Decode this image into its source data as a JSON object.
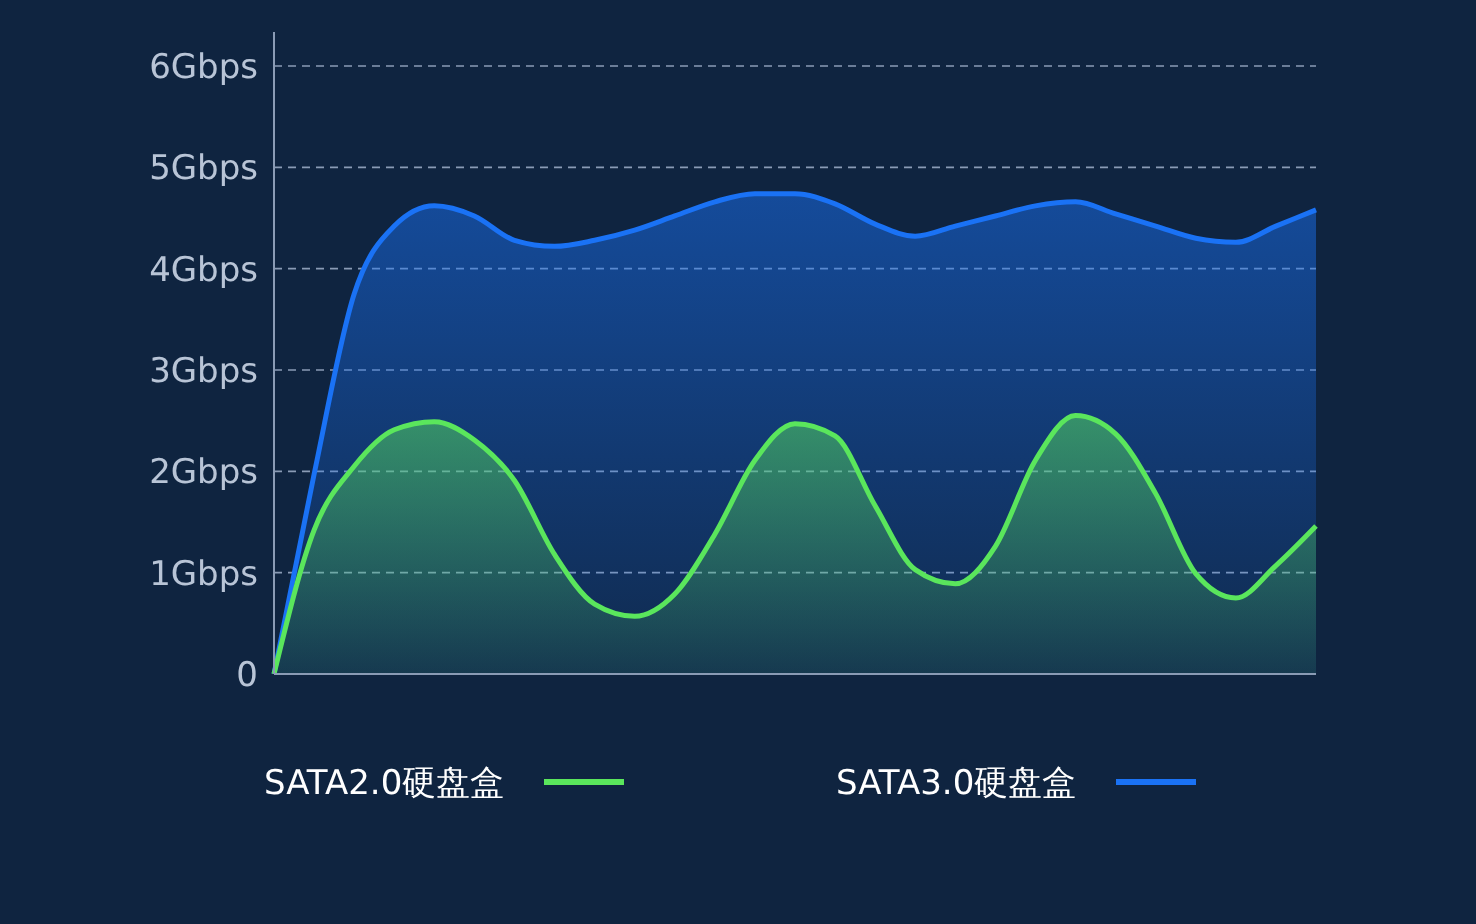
{
  "chart_data": {
    "type": "area",
    "categories": [
      null,
      null,
      null,
      null,
      null,
      null,
      null,
      null,
      null,
      null,
      null,
      null,
      null,
      null,
      null,
      null,
      null,
      null,
      null,
      null,
      null,
      null,
      null,
      null,
      null,
      null,
      null
    ],
    "ylim": [
      0,
      6
    ],
    "yticks": [
      0,
      {
        "value": 1,
        "label": "1Gbps"
      },
      {
        "value": 2,
        "label": "2Gbps"
      },
      {
        "value": 3,
        "label": "3Gbps"
      },
      {
        "value": 4,
        "label": "4Gbps"
      },
      {
        "value": 5,
        "label": "5Gbps"
      },
      {
        "value": 6,
        "label": "6Gbps"
      }
    ],
    "grid": "y",
    "legend": "bottom",
    "line_style": "solid",
    "series": [
      {
        "name": "SATA2.0硬盘盒",
        "color": "#5ae65c",
        "values": [
          0,
          1.42,
          2.05,
          2.41,
          2.49,
          2.31,
          1.91,
          1.18,
          0.69,
          0.57,
          0.79,
          1.38,
          2.11,
          2.47,
          2.35,
          1.66,
          1.03,
          0.89,
          1.26,
          2.11,
          2.55,
          2.37,
          1.78,
          0.99,
          0.75,
          1.07,
          1.46
        ]
      },
      {
        "name": "SATA3.0硬盘盒",
        "color": "#1a72f5",
        "values": [
          0,
          1.97,
          3.75,
          4.42,
          4.62,
          4.52,
          4.28,
          4.22,
          4.28,
          4.38,
          4.52,
          4.66,
          4.74,
          4.74,
          4.64,
          4.44,
          4.32,
          4.42,
          4.52,
          4.62,
          4.66,
          4.54,
          4.42,
          4.3,
          4.26,
          4.42,
          4.58
        ]
      }
    ]
  }
}
